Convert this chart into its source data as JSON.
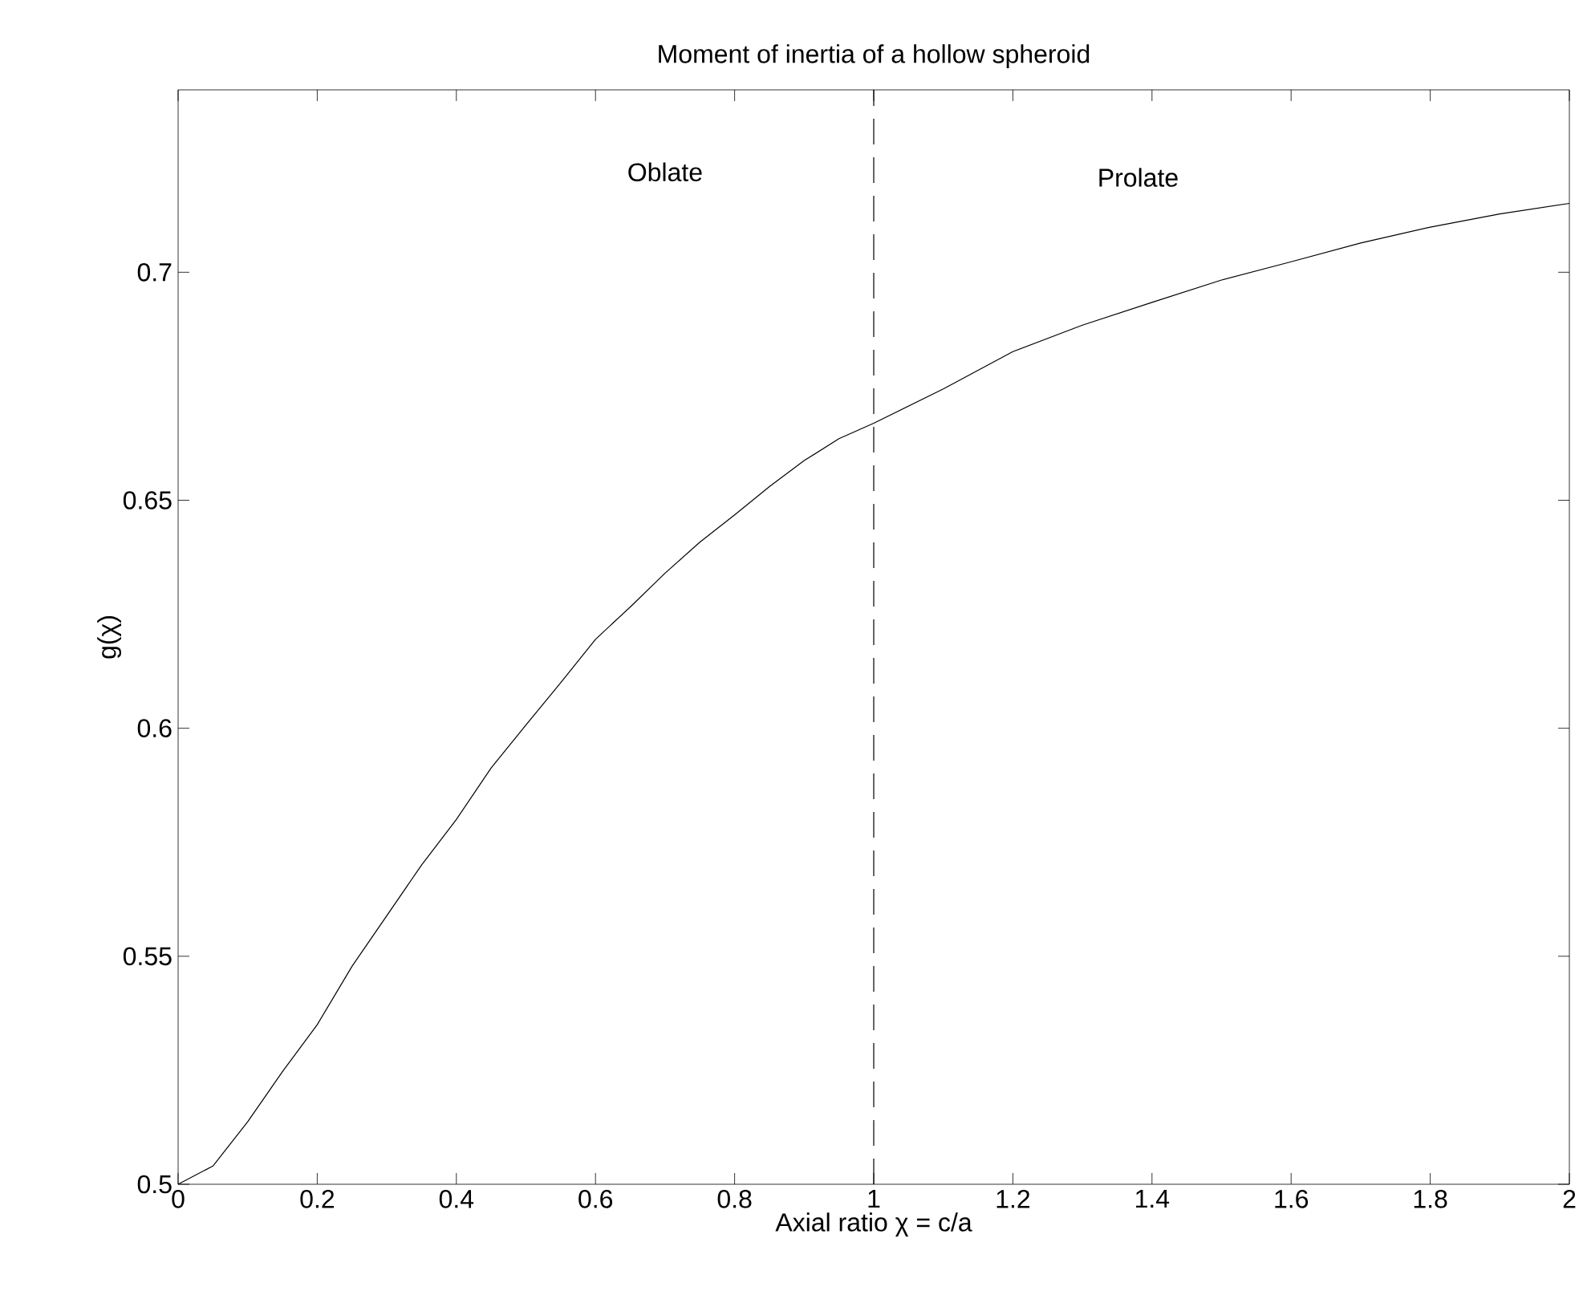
{
  "chart_data": {
    "type": "line",
    "title": "Moment of inertia of a hollow spheroid",
    "xlabel": "Axial ratio χ = c/a",
    "ylabel": "g(χ)",
    "xlim": [
      0,
      2
    ],
    "ylim": [
      0.5,
      0.74
    ],
    "xticks": [
      0,
      0.2,
      0.4,
      0.6,
      0.8,
      1,
      1.2,
      1.4,
      1.6,
      1.8,
      2
    ],
    "yticks": [
      0.5,
      0.55,
      0.6,
      0.65,
      0.7
    ],
    "marker": "none",
    "line_style": "solid",
    "grid": false,
    "series": [
      {
        "color": "#000000",
        "x": [
          0,
          0.05,
          0.1,
          0.15,
          0.2,
          0.25,
          0.3,
          0.35,
          0.4,
          0.45,
          0.5,
          0.55,
          0.6,
          0.65,
          0.7,
          0.75,
          0.8,
          0.85,
          0.9,
          0.95,
          1,
          1.1,
          1.2,
          1.3,
          1.4,
          1.5,
          1.6,
          1.7,
          1.8,
          1.9,
          2
        ],
        "values": [
          0.5,
          0.504,
          0.5137,
          0.5247,
          0.535,
          0.5478,
          0.5589,
          0.57,
          0.58,
          0.5913,
          0.6007,
          0.61,
          0.6195,
          0.6266,
          0.634,
          0.6408,
          0.6468,
          0.653,
          0.6587,
          0.6635,
          0.6669,
          0.6744,
          0.6826,
          0.6884,
          0.6934,
          0.6983,
          0.7023,
          0.7064,
          0.7099,
          0.7128,
          0.7151
        ]
      }
    ],
    "ref_lines": [
      {
        "axis": "x",
        "value": 1,
        "color": "#000000",
        "line_style": "dashed"
      }
    ],
    "annotations": [
      "Oblate",
      "Prolate"
    ]
  }
}
